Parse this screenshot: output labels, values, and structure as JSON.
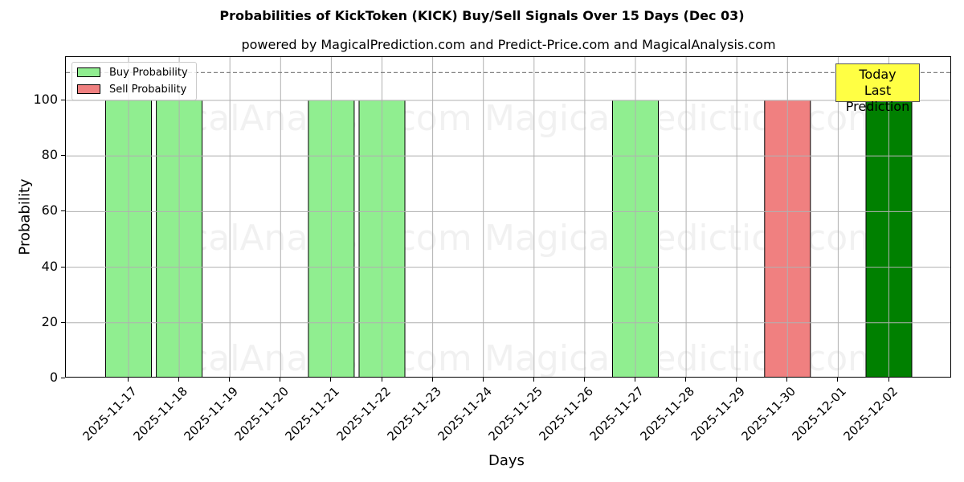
{
  "title": "Probabilities of KickToken (KICK) Buy/Sell Signals Over 15 Days (Dec 03)",
  "subtitle": "powered by MagicalPrediction.com and Predict-Price.com and MagicalAnalysis.com",
  "legend": {
    "buy_label": "Buy Probability",
    "sell_label": "Sell Probability"
  },
  "annotation": {
    "line1": "Today",
    "line2": "Last Prediction"
  },
  "watermarks": [
    "MagicalAnalysis.com",
    "MagicalPrediction.com"
  ],
  "colors": {
    "buy": "#90ee90",
    "sell": "#f08080",
    "today": "#008000",
    "annotation_bg": "#ffff44",
    "threshold_line": "#808080"
  },
  "chart_data": {
    "type": "bar",
    "title": "Probabilities of KickToken (KICK) Buy/Sell Signals Over 15 Days (Dec 03)",
    "subtitle": "powered by MagicalPrediction.com and Predict-Price.com and MagicalAnalysis.com",
    "xlabel": "Days",
    "ylabel": "Probability",
    "ylim": [
      0,
      115.6
    ],
    "yticks": [
      0,
      20,
      40,
      60,
      80,
      100
    ],
    "grid": true,
    "legend_position": "upper left",
    "threshold_line": {
      "y": 110,
      "style": "dashed"
    },
    "categories": [
      "2025-11-17",
      "2025-11-18",
      "2025-11-19",
      "2025-11-20",
      "2025-11-21",
      "2025-11-22",
      "2025-11-23",
      "2025-11-24",
      "2025-11-25",
      "2025-11-26",
      "2025-11-27",
      "2025-11-28",
      "2025-11-29",
      "2025-11-30",
      "2025-12-01",
      "2025-12-02"
    ],
    "series": [
      {
        "name": "Buy Probability",
        "values": [
          100,
          100,
          0,
          0,
          100,
          100,
          0,
          0,
          0,
          0,
          100,
          0,
          0,
          0,
          0,
          100
        ]
      },
      {
        "name": "Sell Probability",
        "values": [
          0,
          0,
          0,
          0,
          0,
          0,
          0,
          0,
          0,
          0,
          0,
          0,
          0,
          100,
          0,
          0
        ]
      }
    ],
    "highlight": {
      "category": "2025-12-02",
      "label": "Today\nLast Prediction",
      "color": "#008000"
    }
  }
}
